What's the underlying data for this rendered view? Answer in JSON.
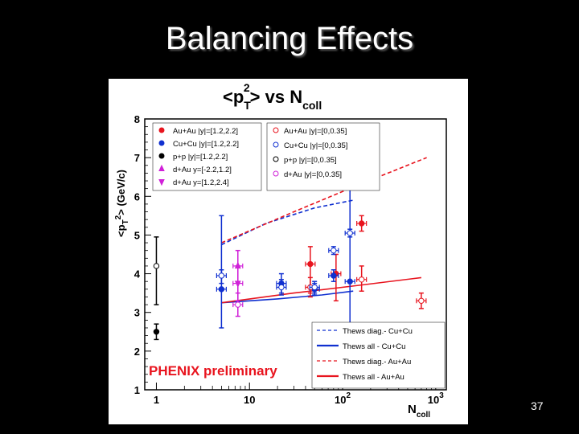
{
  "slide": {
    "title": "Balancing Effects",
    "page_number": "37"
  },
  "chart_data": {
    "type": "scatter",
    "title": "<p_T^2> vs N_coll",
    "title_parts": {
      "p": "<p",
      "sub": "T",
      "sup": "2",
      "rest": "> vs N",
      "ncoll_sub": "coll"
    },
    "ylabel_parts": {
      "a": "<p",
      "sub": "T",
      "sup": "2",
      "b": "> (GeV/c)"
    },
    "xlabel_parts": {
      "main": "N",
      "sub": "coll"
    },
    "x_scale": "log",
    "xlim": [
      0.75,
      1300
    ],
    "ylim": [
      1,
      8
    ],
    "x_ticks": [
      {
        "v": 1,
        "label": "1"
      },
      {
        "v": 10,
        "label": "10"
      },
      {
        "v": 100,
        "label": "10",
        "sup": "2"
      },
      {
        "v": 1000,
        "label": "10",
        "sup": "3"
      }
    ],
    "y_ticks": [
      1,
      2,
      3,
      4,
      5,
      6,
      7,
      8
    ],
    "annotation": "PHENIX preliminary",
    "annotation_color": "#e8141e",
    "legend_left": [
      {
        "label": "Au+Au |y|=[1.2,2.2]",
        "marker": "circle",
        "filled": true,
        "color": "#e8141e"
      },
      {
        "label": "Cu+Cu |y|=[1.2,2.2]",
        "marker": "circle",
        "filled": true,
        "color": "#1030d0"
      },
      {
        "label": "p+p |y|=[1.2,2.2]",
        "marker": "circle",
        "filled": true,
        "color": "#000000"
      },
      {
        "label": "d+Au y=[-2.2,1.2]",
        "marker": "triangle-up",
        "filled": true,
        "color": "#d020d8"
      },
      {
        "label": "d+Au y=[1.2,2.4]",
        "marker": "triangle-down",
        "filled": true,
        "color": "#d020d8"
      }
    ],
    "legend_right": [
      {
        "label": "Au+Au |y|=[0,0.35]",
        "marker": "circle",
        "filled": false,
        "color": "#e8141e"
      },
      {
        "label": "Cu+Cu |y|=[0,0.35]",
        "marker": "circle",
        "filled": false,
        "color": "#1030d0"
      },
      {
        "label": "p+p |y|=[0,0.35]",
        "marker": "circle",
        "filled": false,
        "color": "#000000"
      },
      {
        "label": "d+Au |y|=[0,0.35]",
        "marker": "circle",
        "filled": false,
        "color": "#d020d8"
      }
    ],
    "legend_lines": [
      {
        "label": "Thews diag.- Cu+Cu",
        "color": "#1030d0",
        "dashed": true
      },
      {
        "label": "Thews all - Cu+Cu",
        "color": "#1030d0",
        "dashed": false
      },
      {
        "label": "Thews diag.- Au+Au",
        "color": "#e8141e",
        "dashed": true
      },
      {
        "label": "Thews all - Au+Au",
        "color": "#e8141e",
        "dashed": false
      }
    ],
    "series": [
      {
        "name": "Au+Au |y|=[1.2,2.2]",
        "color": "#e8141e",
        "marker": "circle",
        "filled": true,
        "points": [
          {
            "x": 45,
            "y": 4.25,
            "ylo": 3.5,
            "yhi": 4.7
          },
          {
            "x": 85,
            "y": 4.0,
            "ylo": 3.3,
            "yhi": 4.5
          },
          {
            "x": 160,
            "y": 5.3,
            "ylo": 5.1,
            "yhi": 5.5
          }
        ]
      },
      {
        "name": "Cu+Cu |y|=[1.2,2.2]",
        "color": "#1030d0",
        "marker": "circle",
        "filled": true,
        "points": [
          {
            "x": 5,
            "y": 3.6,
            "ylo": 2.6,
            "yhi": 5.5
          },
          {
            "x": 22,
            "y": 3.75,
            "ylo": 3.5,
            "yhi": 4.0
          },
          {
            "x": 50,
            "y": 3.6,
            "ylo": 3.45,
            "yhi": 3.75
          },
          {
            "x": 80,
            "y": 3.95,
            "ylo": 3.8,
            "yhi": 4.1
          },
          {
            "x": 120,
            "y": 3.8,
            "ylo": 1.3,
            "yhi": 6.2
          }
        ]
      },
      {
        "name": "p+p |y|=[1.2,2.2]",
        "color": "#000000",
        "marker": "circle",
        "filled": true,
        "points": [
          {
            "x": 1,
            "y": 2.5,
            "ylo": 2.3,
            "yhi": 2.7
          }
        ]
      },
      {
        "name": "d+Au y=[-2.2,1.2]",
        "color": "#d020d8",
        "marker": "triangle-up",
        "filled": true,
        "points": [
          {
            "x": 7.5,
            "y": 4.2,
            "ylo": 3.3,
            "yhi": 4.6
          }
        ]
      },
      {
        "name": "d+Au y=[1.2,2.4]",
        "color": "#d020d8",
        "marker": "triangle-down",
        "filled": true,
        "points": [
          {
            "x": 7.5,
            "y": 3.75,
            "ylo": 3.2,
            "yhi": 4.2
          }
        ]
      },
      {
        "name": "Au+Au |y|=[0,0.35]",
        "color": "#e8141e",
        "marker": "circle",
        "filled": false,
        "points": [
          {
            "x": 45,
            "y": 3.65,
            "ylo": 3.4,
            "yhi": 3.9
          },
          {
            "x": 160,
            "y": 3.85,
            "ylo": 3.55,
            "yhi": 4.2
          },
          {
            "x": 700,
            "y": 3.3,
            "ylo": 3.1,
            "yhi": 3.5
          }
        ]
      },
      {
        "name": "Cu+Cu |y|=[0,0.35]",
        "color": "#1030d0",
        "marker": "circle",
        "filled": false,
        "points": [
          {
            "x": 5,
            "y": 3.95,
            "ylo": 3.75,
            "yhi": 4.1
          },
          {
            "x": 22,
            "y": 3.65,
            "ylo": 3.45,
            "yhi": 3.85
          },
          {
            "x": 50,
            "y": 3.65,
            "ylo": 3.5,
            "yhi": 3.8
          },
          {
            "x": 80,
            "y": 4.6,
            "ylo": 4.5,
            "yhi": 4.7
          },
          {
            "x": 120,
            "y": 5.05,
            "ylo": 4.95,
            "yhi": 5.15
          }
        ]
      },
      {
        "name": "p+p |y|=[0,0.35]",
        "color": "#000000",
        "marker": "circle",
        "filled": false,
        "points": [
          {
            "x": 1,
            "y": 4.2,
            "ylo": 3.2,
            "yhi": 4.95
          }
        ]
      },
      {
        "name": "d+Au |y|=[0,0.35]",
        "color": "#d020d8",
        "marker": "circle",
        "filled": false,
        "points": [
          {
            "x": 7.5,
            "y": 3.2,
            "ylo": 2.9,
            "yhi": 3.5
          }
        ]
      }
    ],
    "curves": [
      {
        "name": "Thews diag.- Cu+Cu",
        "color": "#1030d0",
        "dashed": true,
        "points": [
          [
            5,
            4.75
          ],
          [
            15,
            5.3
          ],
          [
            50,
            5.7
          ],
          [
            130,
            5.9
          ]
        ]
      },
      {
        "name": "Thews all - Cu+Cu",
        "color": "#1030d0",
        "dashed": false,
        "points": [
          [
            5,
            3.25
          ],
          [
            20,
            3.35
          ],
          [
            60,
            3.45
          ],
          [
            130,
            3.55
          ]
        ]
      },
      {
        "name": "Thews diag.- Au+Au",
        "color": "#e8141e",
        "dashed": true,
        "points": [
          [
            5,
            4.8
          ],
          [
            30,
            5.6
          ],
          [
            150,
            6.3
          ],
          [
            800,
            7.0
          ]
        ]
      },
      {
        "name": "Thews all - Au+Au",
        "color": "#e8141e",
        "dashed": false,
        "points": [
          [
            5,
            3.25
          ],
          [
            30,
            3.5
          ],
          [
            150,
            3.7
          ],
          [
            700,
            3.9
          ]
        ]
      }
    ]
  }
}
